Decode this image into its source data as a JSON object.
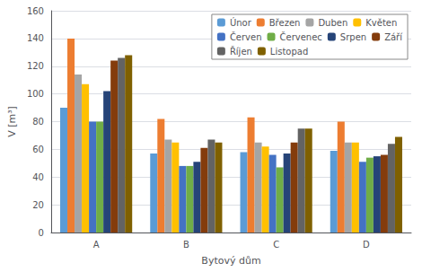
{
  "chart_data": {
    "type": "bar",
    "xlabel": "Bytový dům",
    "ylabel": "V [m³]",
    "categories": [
      "A",
      "B",
      "C",
      "D"
    ],
    "series": [
      {
        "name": "Únor",
        "color": "#5b9bd5",
        "values": [
          90,
          57,
          58,
          59
        ]
      },
      {
        "name": "Březen",
        "color": "#ed7d31",
        "values": [
          140,
          82,
          83,
          80
        ]
      },
      {
        "name": "Duben",
        "color": "#a5a5a5",
        "values": [
          114,
          67,
          65,
          65
        ]
      },
      {
        "name": "Květen",
        "color": "#ffc000",
        "values": [
          107,
          65,
          62,
          65
        ]
      },
      {
        "name": "Červen",
        "color": "#4472c4",
        "values": [
          80,
          48,
          56,
          51
        ]
      },
      {
        "name": "Červenec",
        "color": "#70ad47",
        "values": [
          80,
          48,
          47,
          54
        ]
      },
      {
        "name": "Srpen",
        "color": "#264478",
        "values": [
          102,
          51,
          57,
          55
        ]
      },
      {
        "name": "Září",
        "color": "#843c0c",
        "values": [
          124,
          61,
          65,
          56
        ]
      },
      {
        "name": "Říjen",
        "color": "#636363",
        "values": [
          126,
          67,
          75,
          64
        ]
      },
      {
        "name": "Listopad",
        "color": "#7f6000",
        "values": [
          128,
          65,
          75,
          69
        ]
      }
    ],
    "ylim": [
      0,
      160
    ],
    "yticks": [
      0,
      20,
      40,
      60,
      80,
      100,
      120,
      140,
      160
    ],
    "grid": true,
    "legend": "upper right"
  }
}
